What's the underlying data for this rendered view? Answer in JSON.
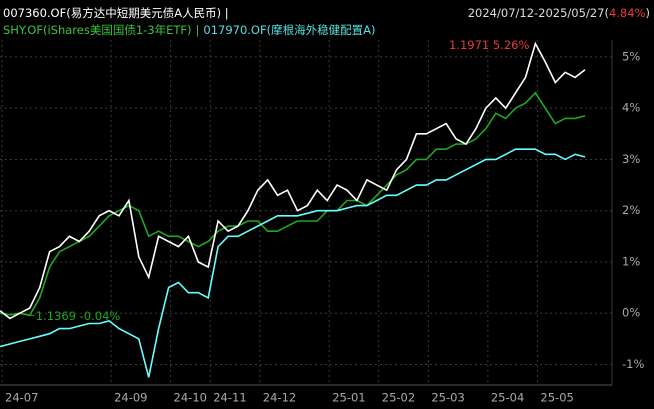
{
  "chart_data": {
    "type": "line",
    "separator": "|",
    "period": "2024/07/12-2025/05/27",
    "brackets": [
      "(",
      ")"
    ],
    "period_return": 4.84,
    "period_return_label": "4.84%",
    "categories": [
      "24-07",
      null,
      null,
      null,
      null,
      null,
      null,
      null,
      null,
      null,
      null,
      "24-09",
      null,
      null,
      null,
      null,
      null,
      "24-10",
      null,
      null,
      null,
      "24-11",
      null,
      null,
      null,
      null,
      "24-12",
      null,
      null,
      null,
      null,
      null,
      null,
      "25-01",
      null,
      null,
      null,
      null,
      "25-02",
      null,
      null,
      null,
      null,
      "25-03",
      null,
      null,
      null,
      null,
      null,
      "25-04",
      null,
      null,
      null,
      null,
      "25-05",
      null,
      null,
      null,
      null,
      null
    ],
    "series": [
      {
        "name": "007360.OF(易方达中短期美元债A人民币)",
        "color": "#ffffff",
        "values": [
          0.05,
          -0.1,
          0.0,
          0.1,
          0.5,
          1.2,
          1.3,
          1.5,
          1.4,
          1.6,
          1.9,
          2.0,
          1.9,
          2.2,
          1.1,
          0.7,
          1.5,
          1.4,
          1.3,
          1.5,
          1.0,
          0.9,
          1.8,
          1.6,
          1.7,
          2.0,
          2.4,
          2.6,
          2.3,
          2.4,
          2.0,
          2.1,
          2.4,
          2.2,
          2.5,
          2.4,
          2.2,
          2.6,
          2.5,
          2.4,
          2.8,
          3.0,
          3.5,
          3.5,
          3.6,
          3.7,
          3.4,
          3.3,
          3.6,
          4.0,
          4.2,
          4.0,
          4.3,
          4.6,
          5.26,
          4.9,
          4.5,
          4.7,
          4.6,
          4.75
        ]
      },
      {
        "name": "SHY.OF(iShares美国国债1-3年ETF)",
        "color": "#1fa81f",
        "values": [
          0.0,
          -0.03,
          0.0,
          -0.04,
          0.3,
          0.9,
          1.2,
          1.3,
          1.4,
          1.5,
          1.7,
          1.9,
          2.0,
          2.1,
          2.0,
          1.5,
          1.6,
          1.5,
          1.5,
          1.4,
          1.3,
          1.4,
          1.6,
          1.7,
          1.7,
          1.8,
          1.8,
          1.6,
          1.6,
          1.7,
          1.8,
          1.8,
          1.8,
          2.0,
          2.0,
          2.2,
          2.2,
          2.1,
          2.3,
          2.5,
          2.7,
          2.8,
          3.0,
          3.0,
          3.2,
          3.2,
          3.3,
          3.3,
          3.4,
          3.6,
          3.9,
          3.8,
          4.0,
          4.1,
          4.3,
          4.0,
          3.7,
          3.8,
          3.8,
          3.85
        ]
      },
      {
        "name": "017970.OF(摩根海外稳健配置A)",
        "color": "#66ffff",
        "values": [
          -0.65,
          -0.6,
          -0.55,
          -0.5,
          -0.45,
          -0.4,
          -0.3,
          -0.3,
          -0.25,
          -0.2,
          -0.2,
          -0.15,
          -0.3,
          -0.4,
          -0.5,
          -1.25,
          -0.3,
          0.5,
          0.6,
          0.4,
          0.4,
          0.3,
          1.3,
          1.5,
          1.5,
          1.6,
          1.7,
          1.8,
          1.9,
          1.9,
          1.9,
          1.95,
          2.0,
          2.0,
          2.0,
          2.05,
          2.1,
          2.1,
          2.2,
          2.3,
          2.3,
          2.4,
          2.5,
          2.5,
          2.6,
          2.6,
          2.7,
          2.8,
          2.9,
          3.0,
          3.0,
          3.1,
          3.2,
          3.2,
          3.2,
          3.1,
          3.1,
          3.0,
          3.1,
          3.05
        ]
      }
    ],
    "annotations": [
      {
        "text": "1.1971  5.26%",
        "color": "#e83a3a"
      },
      {
        "text": "1.1369  -0.04%",
        "color": "#1fa81f"
      }
    ],
    "ylim": [
      -1.4,
      5.33
    ],
    "yticks": [
      {
        "value": -1,
        "label": "-1%"
      },
      {
        "value": 0,
        "label": "0%"
      },
      {
        "value": 1,
        "label": "1%"
      },
      {
        "value": 2,
        "label": "2%"
      },
      {
        "value": 3,
        "label": "3%"
      },
      {
        "value": 4,
        "label": "4%"
      },
      {
        "value": 5,
        "label": "5%"
      }
    ],
    "grid": true
  }
}
